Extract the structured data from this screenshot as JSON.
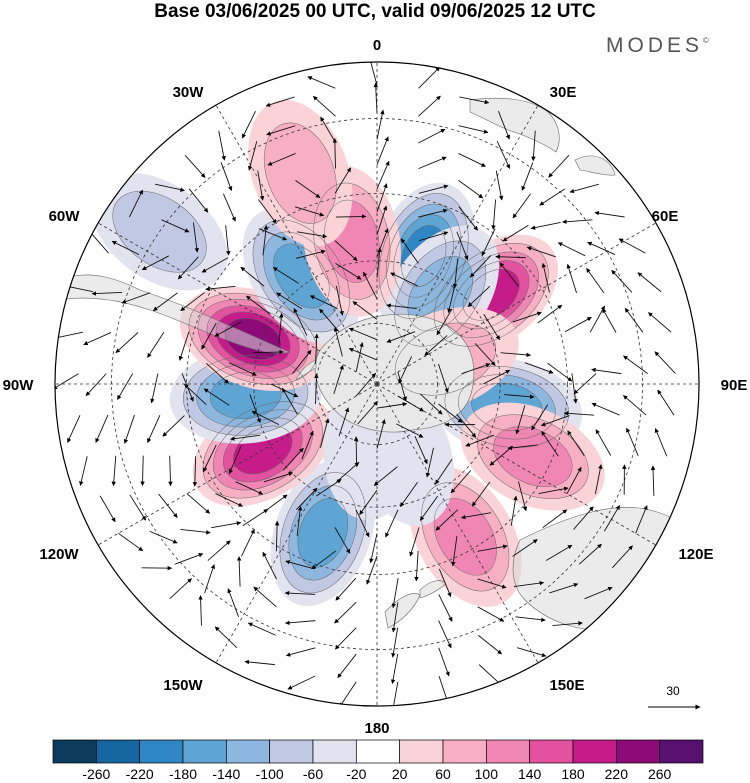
{
  "title": "Base 03/06/2025 00 UTC, valid 09/06/2025 12 UTC",
  "brand": "MODES",
  "brand_mark": "©",
  "longitude_labels": [
    "0",
    "30E",
    "60E",
    "90E",
    "120E",
    "150E",
    "180",
    "150W",
    "120W",
    "90W",
    "60W",
    "30W"
  ],
  "reference_vector": {
    "value": "30",
    "icon": "arrow-right-icon"
  },
  "colorbar": {
    "labels": [
      "-260",
      "-220",
      "-180",
      "-140",
      "-100",
      "-60",
      "-20",
      "20",
      "60",
      "100",
      "140",
      "180",
      "220",
      "260"
    ],
    "colors": [
      "#0c3a5c",
      "#1565a0",
      "#2f86c3",
      "#5ea5d4",
      "#8db7df",
      "#c0c8e3",
      "#e3e2ef",
      "#ffffff",
      "#f9d3d7",
      "#f6afc3",
      "#ef86b3",
      "#e3529f",
      "#c61c89",
      "#8d0a78",
      "#56106e"
    ]
  },
  "anomaly_centers": [
    {
      "lon": 20,
      "lat": -57,
      "value": -200
    },
    {
      "lon": 52,
      "lat": -55,
      "value": 210
    },
    {
      "lon": 35,
      "lat": -63,
      "value": -120
    },
    {
      "lon": 100,
      "lat": -58,
      "value": -150
    },
    {
      "lon": 115,
      "lat": -49,
      "value": 130
    },
    {
      "lon": 150,
      "lat": -48,
      "value": 110
    },
    {
      "lon": -160,
      "lat": -52,
      "value": -160
    },
    {
      "lon": -120,
      "lat": -58,
      "value": 220
    },
    {
      "lon": -95,
      "lat": -58,
      "value": -170
    },
    {
      "lon": -70,
      "lat": -58,
      "value": 240
    },
    {
      "lon": -35,
      "lat": -58,
      "value": -150
    },
    {
      "lon": -10,
      "lat": -55,
      "value": 110
    },
    {
      "lon": -20,
      "lat": -38,
      "value": 90
    },
    {
      "lon": -55,
      "lat": -30,
      "value": -100
    },
    {
      "lon": -175,
      "lat": -75,
      "value": -60
    },
    {
      "lon": 160,
      "lat": -72,
      "value": -60
    },
    {
      "lon": 70,
      "lat": -72,
      "value": 80
    }
  ]
}
